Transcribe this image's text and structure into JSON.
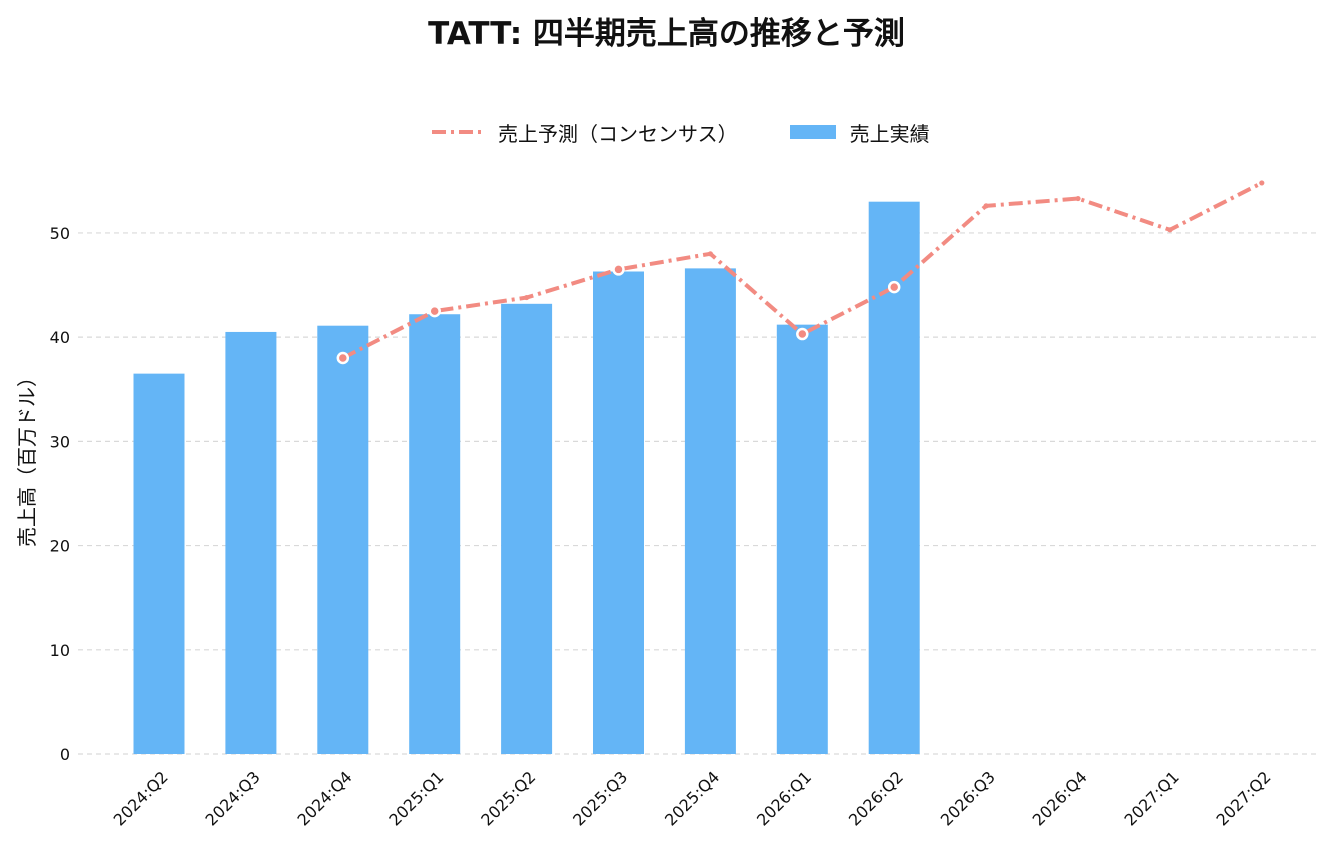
{
  "chart_data": {
    "type": "bar",
    "title": "TATT: 四半期売上高の推移と予測",
    "xlabel": "",
    "ylabel": "売上高（百万ドル）",
    "ylim": [
      0,
      57
    ],
    "yticks": [
      0,
      10,
      20,
      30,
      40,
      50
    ],
    "grid": true,
    "legend_position": "top-center",
    "categories": [
      "2024:Q2",
      "2024:Q3",
      "2024:Q4",
      "2025:Q1",
      "2025:Q2",
      "2025:Q3",
      "2025:Q4",
      "2026:Q1",
      "2026:Q2",
      "2026:Q3",
      "2026:Q4",
      "2027:Q1",
      "2027:Q2"
    ],
    "series": [
      {
        "name": "売上予測（コンセンサス）",
        "type": "line",
        "style": "dash-dot",
        "color": "#F28B82",
        "values": [
          null,
          null,
          38.0,
          42.5,
          43.8,
          46.5,
          48.0,
          40.3,
          44.8,
          52.6,
          53.3,
          50.3,
          54.8
        ]
      },
      {
        "name": "売上実績",
        "type": "bar",
        "color": "#64B5F6",
        "values": [
          36.5,
          40.5,
          41.1,
          42.2,
          43.2,
          46.3,
          46.6,
          41.2,
          53.0,
          null,
          null,
          null,
          null
        ]
      }
    ],
    "marker_points": [
      2,
      3,
      5,
      7,
      8
    ]
  }
}
